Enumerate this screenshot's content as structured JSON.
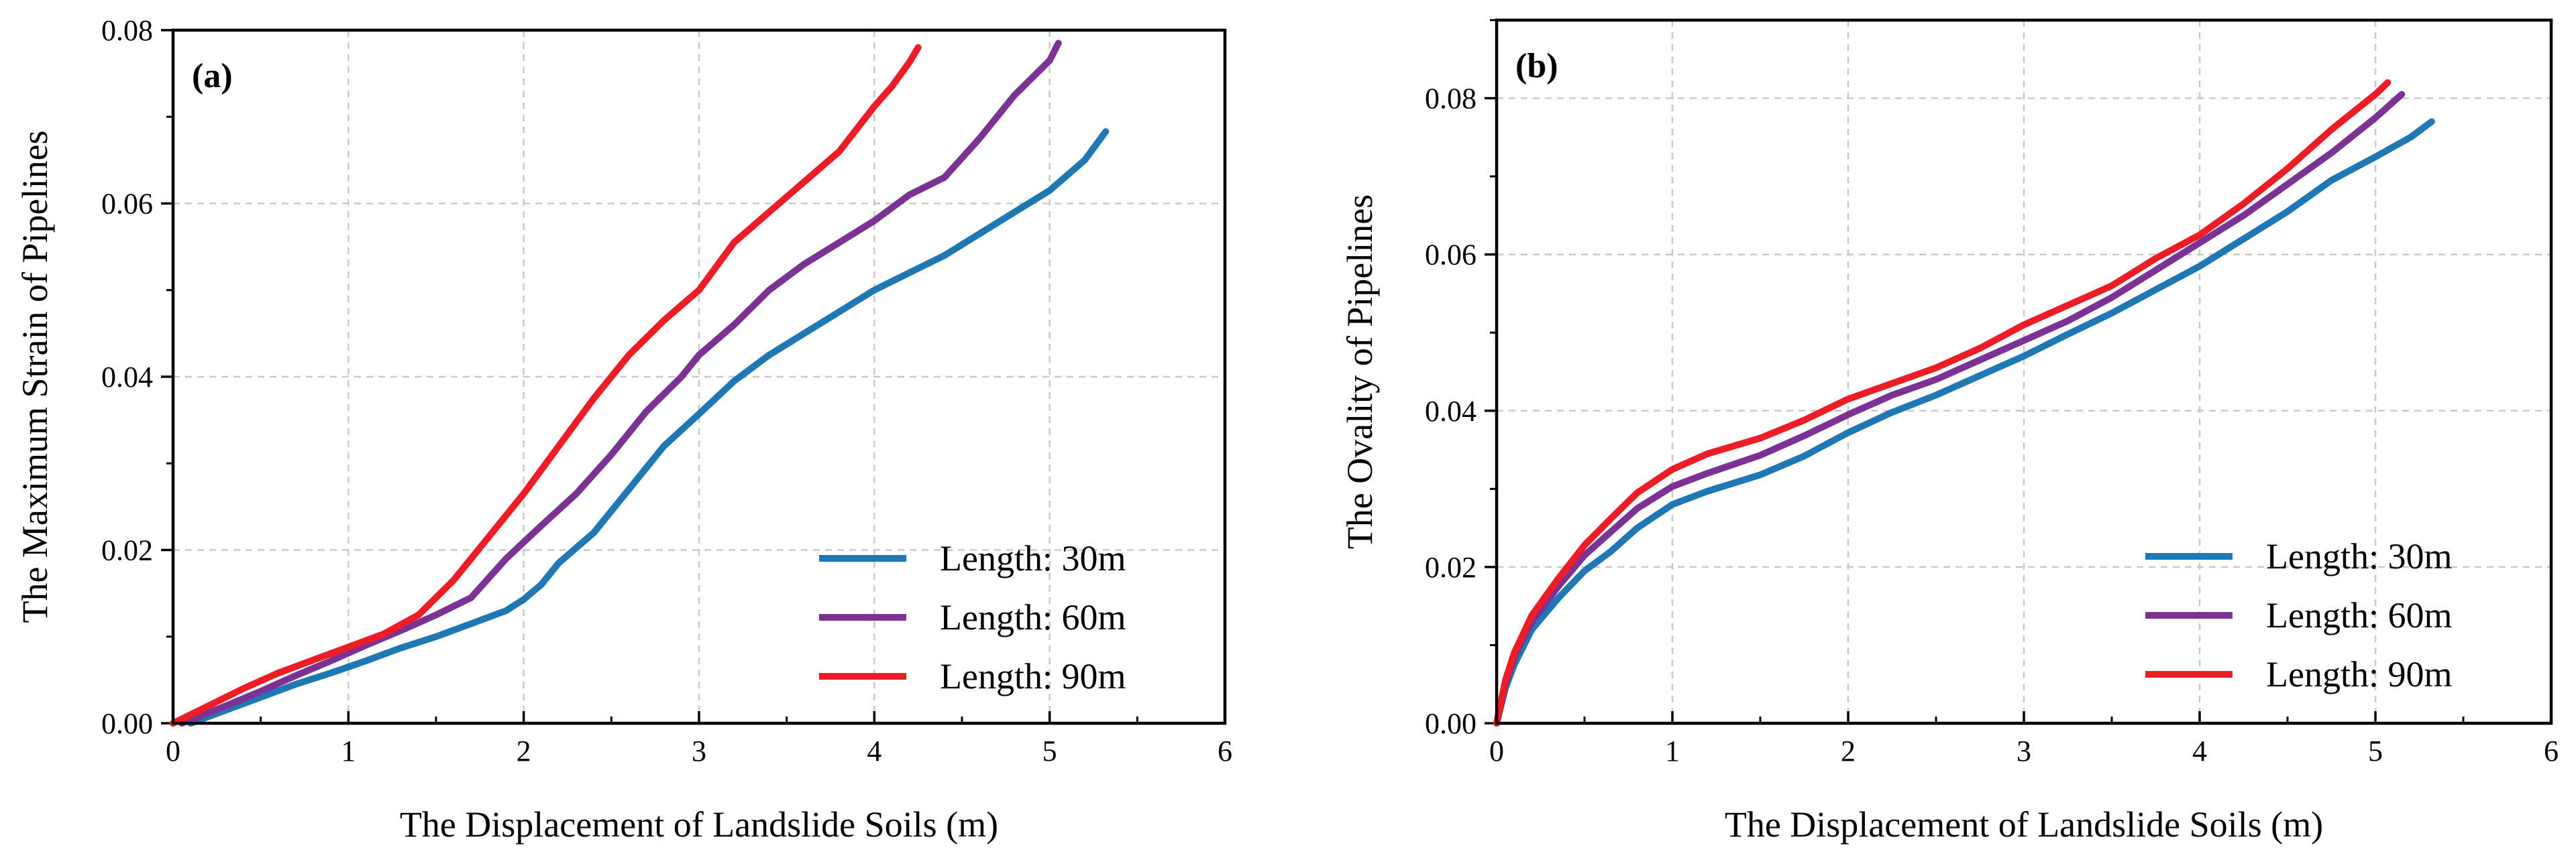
{
  "figure": {
    "background": "#ffffff"
  },
  "chart_data": [
    {
      "type": "line",
      "panel_label": "(a)",
      "title": "",
      "xlabel": "The Displacement of Landslide Soils (m)",
      "ylabel": "The Maximum Strain of Pipelines",
      "xlim": [
        0,
        6
      ],
      "ylim": [
        0,
        0.08
      ],
      "xticks": [
        0,
        1,
        2,
        3,
        4,
        5,
        6
      ],
      "xtick_labels": [
        "0",
        "1",
        "2",
        "3",
        "4",
        "5",
        "6"
      ],
      "yticks": [
        0,
        0.02,
        0.04,
        0.06,
        0.08
      ],
      "ytick_labels": [
        "0.00",
        "0.02",
        "0.04",
        "0.06",
        "0.08"
      ],
      "grid": true,
      "legend_position": "bottom-right",
      "series": [
        {
          "name": "Length: 30m",
          "color": "#1f77b4",
          "x": [
            0.1,
            0.3,
            0.5,
            0.7,
            0.9,
            1.1,
            1.3,
            1.5,
            1.7,
            1.9,
            2.0,
            2.1,
            2.2,
            2.4,
            2.6,
            2.8,
            3.0,
            3.2,
            3.4,
            3.6,
            3.8,
            4.0,
            4.2,
            4.4,
            4.6,
            4.8,
            5.0,
            5.2,
            5.32
          ],
          "y": [
            0.0,
            0.0015,
            0.003,
            0.0045,
            0.0058,
            0.0072,
            0.0087,
            0.01,
            0.0115,
            0.013,
            0.0143,
            0.016,
            0.0185,
            0.022,
            0.027,
            0.032,
            0.0357,
            0.0395,
            0.0425,
            0.045,
            0.0475,
            0.05,
            0.052,
            0.054,
            0.0565,
            0.059,
            0.0615,
            0.065,
            0.0683
          ]
        },
        {
          "name": "Length: 60m",
          "color": "#7b3294",
          "x": [
            0.05,
            0.3,
            0.5,
            0.7,
            0.9,
            1.1,
            1.3,
            1.5,
            1.7,
            1.9,
            2.1,
            2.3,
            2.5,
            2.7,
            2.9,
            3.0,
            3.2,
            3.4,
            3.6,
            3.8,
            4.0,
            4.2,
            4.4,
            4.6,
            4.8,
            5.0,
            5.05
          ],
          "y": [
            0.0,
            0.002,
            0.0037,
            0.0055,
            0.0072,
            0.009,
            0.0107,
            0.0125,
            0.0145,
            0.019,
            0.0228,
            0.0265,
            0.031,
            0.036,
            0.04,
            0.0425,
            0.046,
            0.05,
            0.053,
            0.0555,
            0.058,
            0.061,
            0.063,
            0.0675,
            0.0725,
            0.0765,
            0.0785
          ]
        },
        {
          "name": "Length: 90m",
          "color": "#ee1c25",
          "x": [
            0.0,
            0.2,
            0.4,
            0.6,
            0.8,
            1.0,
            1.2,
            1.4,
            1.6,
            1.8,
            2.0,
            2.2,
            2.4,
            2.6,
            2.8,
            3.0,
            3.2,
            3.4,
            3.6,
            3.8,
            4.0,
            4.1,
            4.2,
            4.25
          ],
          "y": [
            0.0,
            0.002,
            0.004,
            0.0058,
            0.0073,
            0.0088,
            0.0103,
            0.0125,
            0.0165,
            0.0215,
            0.0265,
            0.032,
            0.0375,
            0.0425,
            0.0465,
            0.05,
            0.0555,
            0.059,
            0.0625,
            0.066,
            0.0712,
            0.0735,
            0.0763,
            0.078
          ]
        }
      ]
    },
    {
      "type": "line",
      "panel_label": "(b)",
      "title": "",
      "xlabel": "The Displacement of Landslide Soils (m)",
      "ylabel": "The Ovality of Pipelines",
      "xlim": [
        0,
        6
      ],
      "ylim": [
        0,
        0.09
      ],
      "xticks": [
        0,
        1,
        2,
        3,
        4,
        5,
        6
      ],
      "xtick_labels": [
        "0",
        "1",
        "2",
        "3",
        "4",
        "5",
        "6"
      ],
      "yticks": [
        0,
        0.02,
        0.04,
        0.06,
        0.08
      ],
      "ytick_labels": [
        "0.00",
        "0.02",
        "0.04",
        "0.06",
        "0.08"
      ],
      "grid": true,
      "legend_position": "bottom-right",
      "series": [
        {
          "name": "Length: 30m",
          "color": "#1f77b4",
          "x": [
            0.0,
            0.05,
            0.1,
            0.2,
            0.35,
            0.5,
            0.65,
            0.8,
            1.0,
            1.2,
            1.5,
            1.75,
            2.0,
            2.25,
            2.5,
            2.75,
            3.0,
            3.25,
            3.5,
            3.75,
            4.0,
            4.25,
            4.5,
            4.75,
            5.0,
            5.2,
            5.32
          ],
          "y": [
            0.0,
            0.0045,
            0.0075,
            0.012,
            0.016,
            0.0195,
            0.022,
            0.025,
            0.028,
            0.0297,
            0.0318,
            0.0342,
            0.0372,
            0.0398,
            0.042,
            0.0445,
            0.047,
            0.0498,
            0.0525,
            0.0555,
            0.0585,
            0.062,
            0.0655,
            0.0695,
            0.0725,
            0.075,
            0.077
          ]
        },
        {
          "name": "Length: 60m",
          "color": "#7b3294",
          "x": [
            0.0,
            0.05,
            0.1,
            0.2,
            0.35,
            0.5,
            0.65,
            0.8,
            1.0,
            1.2,
            1.5,
            1.75,
            2.0,
            2.25,
            2.5,
            2.75,
            3.0,
            3.25,
            3.5,
            3.75,
            4.0,
            4.25,
            4.5,
            4.75,
            5.0,
            5.15
          ],
          "y": [
            0.0,
            0.005,
            0.0085,
            0.013,
            0.0175,
            0.0215,
            0.0245,
            0.0275,
            0.0303,
            0.032,
            0.0343,
            0.0368,
            0.0395,
            0.042,
            0.044,
            0.0465,
            0.049,
            0.0515,
            0.0545,
            0.058,
            0.0615,
            0.065,
            0.069,
            0.073,
            0.0775,
            0.0805
          ]
        },
        {
          "name": "Length: 90m",
          "color": "#ee1c25",
          "x": [
            0.0,
            0.05,
            0.1,
            0.2,
            0.35,
            0.5,
            0.65,
            0.8,
            1.0,
            1.2,
            1.5,
            1.75,
            2.0,
            2.25,
            2.5,
            2.75,
            3.0,
            3.25,
            3.5,
            3.75,
            4.0,
            4.25,
            4.5,
            4.75,
            5.0,
            5.07
          ],
          "y": [
            0.0,
            0.0055,
            0.009,
            0.0138,
            0.0185,
            0.0228,
            0.0262,
            0.0295,
            0.0325,
            0.0345,
            0.0365,
            0.0388,
            0.0415,
            0.0435,
            0.0455,
            0.048,
            0.051,
            0.0535,
            0.056,
            0.0595,
            0.0625,
            0.0665,
            0.071,
            0.076,
            0.0805,
            0.082
          ]
        }
      ]
    }
  ]
}
